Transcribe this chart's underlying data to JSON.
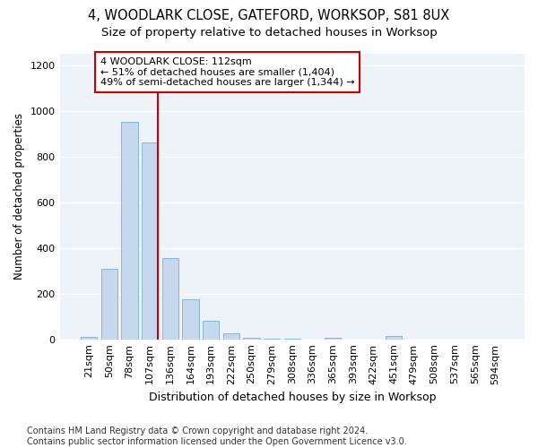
{
  "title1": "4, WOODLARK CLOSE, GATEFORD, WORKSOP, S81 8UX",
  "title2": "Size of property relative to detached houses in Worksop",
  "xlabel": "Distribution of detached houses by size in Worksop",
  "ylabel": "Number of detached properties",
  "bar_color": "#c5d8ee",
  "bar_edge_color": "#89b4d9",
  "categories": [
    "21sqm",
    "50sqm",
    "78sqm",
    "107sqm",
    "136sqm",
    "164sqm",
    "193sqm",
    "222sqm",
    "250sqm",
    "279sqm",
    "308sqm",
    "336sqm",
    "365sqm",
    "393sqm",
    "422sqm",
    "451sqm",
    "479sqm",
    "508sqm",
    "537sqm",
    "565sqm",
    "594sqm"
  ],
  "values": [
    10,
    310,
    950,
    860,
    355,
    175,
    80,
    27,
    5,
    2,
    1,
    0,
    5,
    0,
    0,
    13,
    0,
    0,
    0,
    0,
    0
  ],
  "vline_color": "#cc0000",
  "annotation_text": "4 WOODLARK CLOSE: 112sqm\n← 51% of detached houses are smaller (1,404)\n49% of semi-detached houses are larger (1,344) →",
  "annotation_box_color": "#ffffff",
  "annotation_box_edge": "#cc0000",
  "ylim": [
    0,
    1250
  ],
  "yticks": [
    0,
    200,
    400,
    600,
    800,
    1000,
    1200
  ],
  "footer": "Contains HM Land Registry data © Crown copyright and database right 2024.\nContains public sector information licensed under the Open Government Licence v3.0.",
  "bg_color": "#eef2f9",
  "grid_color": "#ffffff",
  "title1_fontsize": 10.5,
  "title2_fontsize": 9.5,
  "xlabel_fontsize": 9,
  "ylabel_fontsize": 8.5,
  "tick_fontsize": 8,
  "annot_fontsize": 8,
  "footer_fontsize": 7
}
